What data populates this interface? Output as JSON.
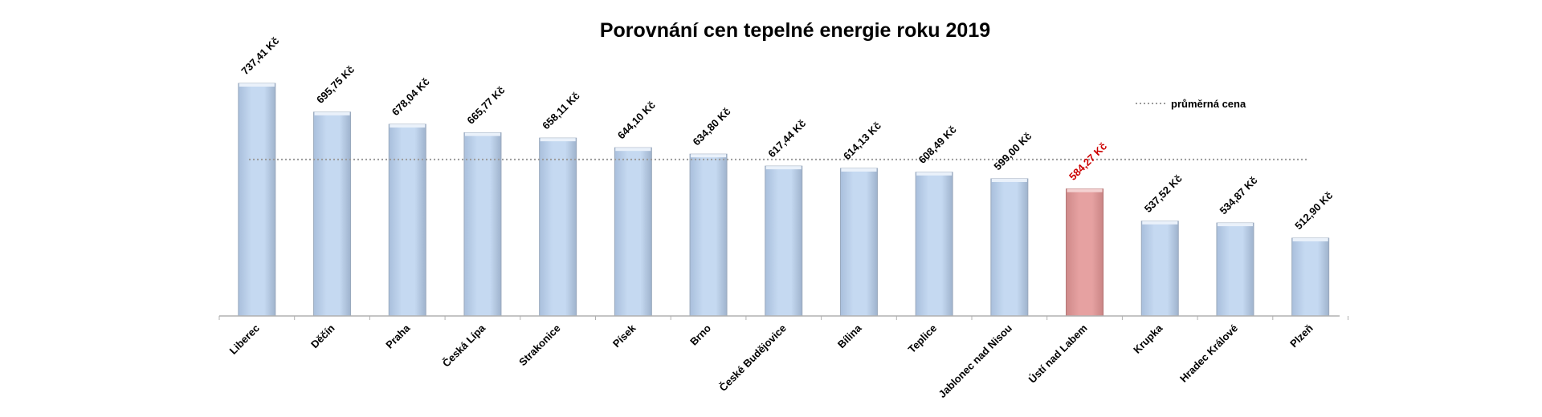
{
  "chart_data": {
    "type": "bar",
    "title": "Porovnání cen tepelné energie roku 2019",
    "xlabel": "",
    "ylabel": "",
    "ylim": [
      400,
      760
    ],
    "grid": false,
    "legend_position": "top-right",
    "categories": [
      "Liberec",
      "Děčín",
      "Praha",
      "Česká Lípa",
      "Strakonice",
      "Písek",
      "Brno",
      "České Budějovice",
      "Bílina",
      "Teplice",
      "Jablonec nad Nisou",
      "Ústí nad Labem",
      "Krupka",
      "Hradec Králové",
      "Plzeň"
    ],
    "values": [
      737.41,
      695.75,
      678.04,
      665.77,
      658.11,
      644.1,
      634.8,
      617.44,
      614.13,
      608.49,
      599.0,
      584.27,
      537.52,
      534.87,
      512.9
    ],
    "value_labels": [
      "737,41 Kč",
      "695,75 Kč",
      "678,04 Kč",
      "665,77 Kč",
      "658,11 Kč",
      "644,10 Kč",
      "634,80 Kč",
      "617,44 Kč",
      "614,13 Kč",
      "608,49 Kč",
      "599,00 Kč",
      "584,27 Kč",
      "537,52 Kč",
      "534,87 Kč",
      "512,90 Kč"
    ],
    "highlight_category": "Ústí nad Labem",
    "average": {
      "label": "průměrná cena",
      "value": 627.0
    },
    "colors": {
      "bar": "#c5d9f1",
      "bar_edge": "#9aa9bd",
      "highlight": "#e6a1a1",
      "highlight_edge": "#b37171",
      "highlight_text": "#cc0000",
      "average_line": "#9a9a9a",
      "axis": "#b0b0b0"
    }
  }
}
